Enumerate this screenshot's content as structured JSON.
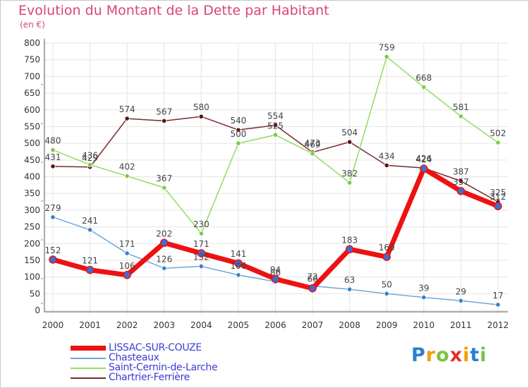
{
  "header": {
    "title": "Evolution du Montant de la Dette par Habitant",
    "unit": "(en €)"
  },
  "logo": {
    "letters": [
      "P",
      "r",
      "o",
      "x",
      "i",
      "t",
      "i"
    ],
    "colors": [
      "#2a7fd4",
      "#f2a000",
      "#7cc242",
      "#e0302f",
      "#f2a000",
      "#2a7fd4",
      "#7cc242"
    ]
  },
  "chart_data": {
    "type": "line",
    "title": "Evolution du Montant de la Dette par Habitant",
    "ylabel": "(en €)",
    "xlabel": "",
    "x": [
      "2000",
      "2001",
      "2002",
      "2003",
      "2004",
      "2005",
      "2006",
      "2007",
      "2008",
      "2009",
      "2010",
      "2011",
      "2012"
    ],
    "ylim": [
      0,
      800
    ],
    "yticks": [
      "0",
      "50",
      "100",
      "150",
      "200",
      "250",
      "300",
      "350",
      "400",
      "450",
      "500",
      "550",
      "600",
      "650",
      "700",
      "750",
      "800"
    ],
    "grid": true,
    "legend_position": "bottom-left",
    "series": [
      {
        "name": "LISSAC-SUR-COUZE",
        "color": "#ee1111",
        "point_color": "#3a6fd0",
        "width": 7,
        "values": [
          152,
          121,
          106,
          202,
          171,
          141,
          94,
          66,
          183,
          160,
          424,
          357,
          312
        ],
        "labels": [
          "152",
          "121",
          "106",
          "202",
          "171",
          "141",
          "94",
          "66",
          "183",
          "160",
          "424",
          "357",
          "312"
        ]
      },
      {
        "name": "Chasteaux",
        "color": "#6ea6d8",
        "point_color": "#3a7fc8",
        "width": 1.5,
        "values": [
          279,
          241,
          171,
          126,
          132,
          106,
          86,
          73,
          63,
          50,
          39,
          29,
          17
        ],
        "labels": [
          "279",
          "241",
          "171",
          "126",
          "132",
          "106",
          "86",
          "73",
          "63",
          "50",
          "39",
          "29",
          "17"
        ]
      },
      {
        "name": "Saint-Cernin-de-Larche",
        "color": "#90dc60",
        "point_color": "#7ccc40",
        "width": 1.5,
        "values": [
          480,
          436,
          402,
          367,
          230,
          500,
          525,
          469,
          382,
          759,
          668,
          581,
          502
        ],
        "labels": [
          "480",
          "436",
          "402",
          "367",
          "230",
          "500",
          "525",
          "469",
          "382",
          "759",
          "668",
          "581",
          "502"
        ]
      },
      {
        "name": "Chartrier-Ferrière",
        "color": "#7a2a2a",
        "point_color": "#5a1414",
        "width": 1.5,
        "values": [
          431,
          429,
          574,
          567,
          580,
          540,
          554,
          473,
          504,
          434,
          426,
          387,
          325
        ],
        "labels": [
          "431",
          "429",
          "574",
          "567",
          "580",
          "540",
          "554",
          "473",
          "504",
          "434",
          "426",
          "387",
          "325"
        ]
      }
    ]
  }
}
